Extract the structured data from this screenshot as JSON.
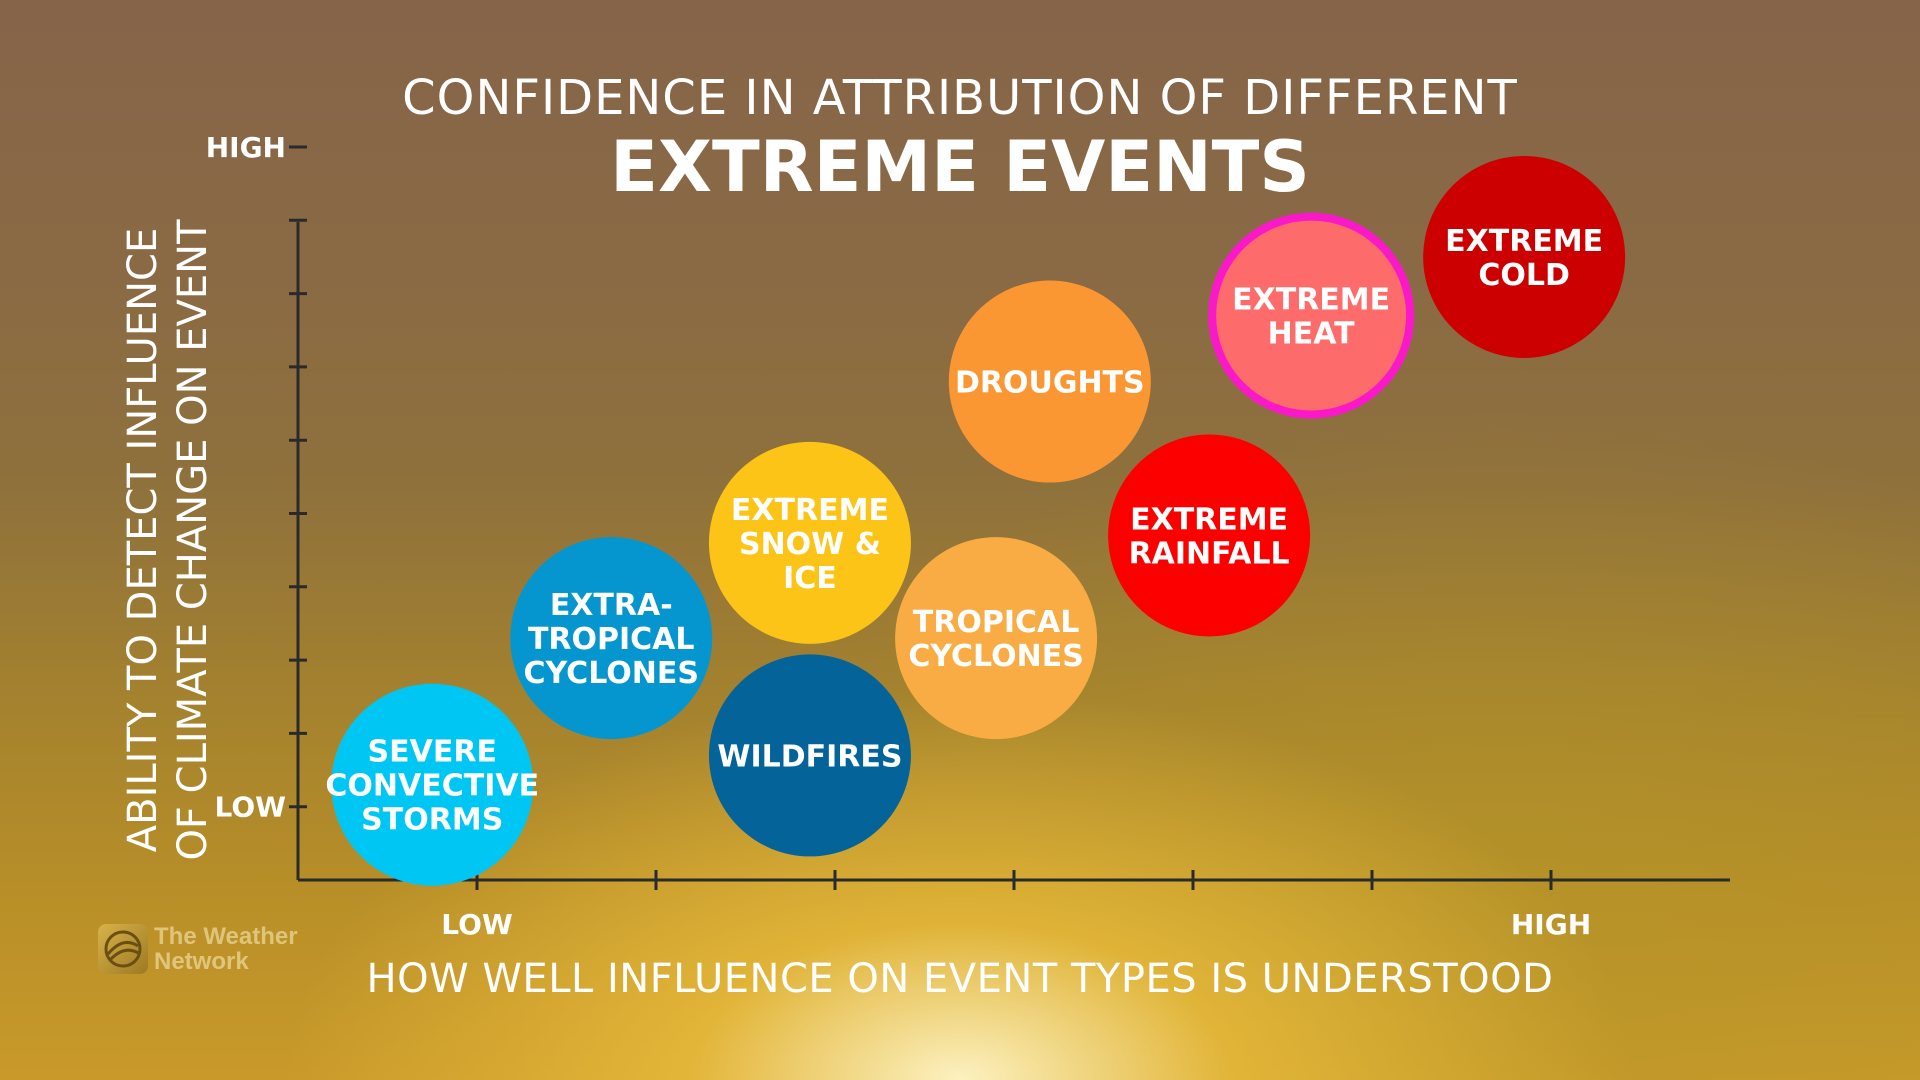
{
  "header": {
    "title_line1": "CONFIDENCE IN ATTRIBUTION OF DIFFERENT",
    "title_line2": "EXTREME EVENTS"
  },
  "axes": {
    "ylabel_line1": "ABILITY TO DETECT INFLUENCE",
    "ylabel_line2": "OF CLIMATE CHANGE ON EVENT",
    "xlabel": "HOW WELL INFLUENCE ON EVENT TYPES IS UNDERSTOOD",
    "y_high": "HIGH",
    "y_low": "LOW",
    "x_low": "LOW",
    "x_high": "HIGH"
  },
  "logo": {
    "line1": "The Weather",
    "line2": "Network"
  },
  "chart_data": {
    "type": "scatter",
    "xlabel": "HOW WELL INFLUENCE ON EVENT TYPES IS UNDERSTOOD",
    "ylabel": "ABILITY TO DETECT INFLUENCE OF CLIMATE CHANGE ON EVENT",
    "xlim": [
      0,
      8
    ],
    "ylim": [
      0,
      10
    ],
    "x_tick_labels": [
      {
        "x": 1,
        "label": "LOW"
      },
      {
        "x": 7,
        "label": "HIGH"
      }
    ],
    "y_tick_labels": [
      {
        "y": 1,
        "label": "LOW"
      },
      {
        "y": 10,
        "label": "HIGH"
      }
    ],
    "legend": "none",
    "grid": false,
    "points": [
      {
        "lines": [
          "SEVERE",
          "CONVECTIVE",
          "STORMS"
        ],
        "x": 0.75,
        "y": 1.3,
        "color": "#00c6f4"
      },
      {
        "lines": [
          "EXTRA-",
          "TROPICAL",
          "CYCLONES"
        ],
        "x": 1.75,
        "y": 3.3,
        "color": "#0596d0"
      },
      {
        "lines": [
          "EXTREME",
          "SNOW &",
          "ICE"
        ],
        "x": 2.86,
        "y": 4.6,
        "color": "#fcc417"
      },
      {
        "lines": [
          "WILDFIRES"
        ],
        "x": 2.86,
        "y": 1.7,
        "color": "#04649a"
      },
      {
        "lines": [
          "TROPICAL",
          "CYCLONES"
        ],
        "x": 3.9,
        "y": 3.3,
        "color": "#f9ac43"
      },
      {
        "lines": [
          "DROUGHTS"
        ],
        "x": 4.2,
        "y": 6.8,
        "color": "#fb9733"
      },
      {
        "lines": [
          "EXTREME",
          "RAINFALL"
        ],
        "x": 5.09,
        "y": 4.7,
        "color": "#fc0000"
      },
      {
        "lines": [
          "EXTREME",
          "HEAT"
        ],
        "x": 5.66,
        "y": 7.7,
        "color": "#fe6b6b",
        "outline": "#fa19c8"
      },
      {
        "lines": [
          "EXTREME",
          "COLD"
        ],
        "x": 6.85,
        "y": 8.5,
        "color": "#cc0000"
      }
    ]
  }
}
